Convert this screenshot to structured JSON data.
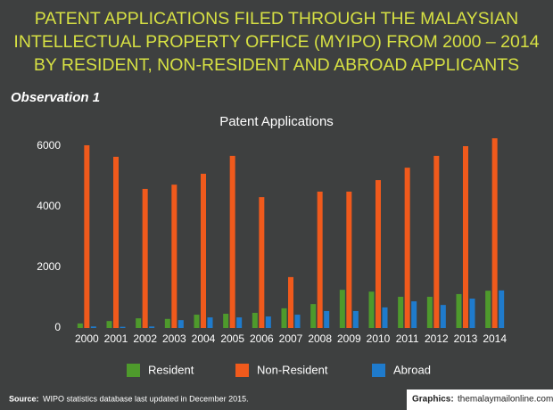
{
  "chart_data": {
    "type": "bar",
    "title_lines": [
      "PATENT APPLICATIONS FILED THROUGH THE MALAYSIAN",
      "INTELLECTUAL PROPERTY OFFICE (MYIPO) FROM 2000 – 2014",
      "BY RESIDENT, NON-RESIDENT AND ABROAD APPLICANTS"
    ],
    "observation": "Observation 1",
    "subtitle": "Patent Applications",
    "categories": [
      "2000",
      "2001",
      "2002",
      "2003",
      "2004",
      "2005",
      "2006",
      "2007",
      "2008",
      "2009",
      "2010",
      "2011",
      "2012",
      "2013",
      "2014"
    ],
    "series": [
      {
        "name": "Resident",
        "color": "#4e9a2c",
        "values": [
          150,
          230,
          320,
          300,
          440,
          470,
          500,
          650,
          790,
          1260,
          1200,
          1030,
          1030,
          1120,
          1230
        ]
      },
      {
        "name": "Non-Resident",
        "color": "#f05a1c",
        "values": [
          6030,
          5650,
          4590,
          4730,
          5090,
          5680,
          4320,
          1680,
          4500,
          4500,
          4880,
          5290,
          5680,
          6000,
          6260
        ]
      },
      {
        "name": "Abroad",
        "color": "#1f7bcc",
        "values": [
          50,
          40,
          50,
          260,
          350,
          350,
          380,
          440,
          560,
          560,
          680,
          880,
          760,
          970,
          1240
        ]
      }
    ],
    "ylim": [
      0,
      6400
    ],
    "yticks": [
      0,
      2000,
      4000,
      6000
    ],
    "grid": false,
    "source_label": "Source:",
    "source": "WIPO  statistics database last updated in December 2015.",
    "credit_label": "Graphics:",
    "credit": "themalaymailonline.com"
  }
}
